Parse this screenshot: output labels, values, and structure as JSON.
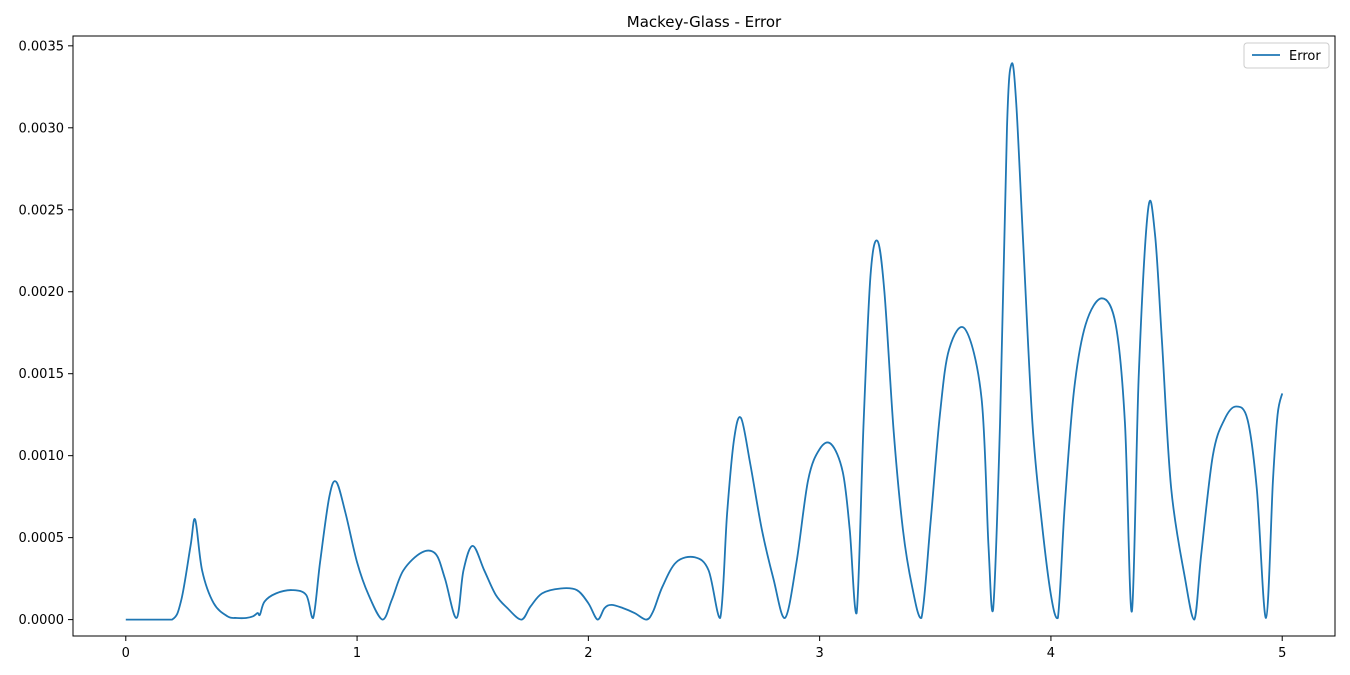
{
  "chart_data": {
    "type": "line",
    "title": "Mackey-Glass - Error",
    "xlabel": "",
    "ylabel": "",
    "xlim": [
      0,
      5
    ],
    "ylim": [
      0,
      0.0035
    ],
    "x_ticks": [
      0,
      1,
      2,
      3,
      4,
      5
    ],
    "x_tick_labels": [
      "0",
      "1",
      "2",
      "3",
      "4",
      "5"
    ],
    "y_ticks": [
      0,
      0.0005,
      0.001,
      0.0015,
      0.002,
      0.0025,
      0.003,
      0.0035
    ],
    "y_tick_labels": [
      "0.0000",
      "0.0005",
      "0.0010",
      "0.0015",
      "0.0020",
      "0.0025",
      "0.0030",
      "0.0035"
    ],
    "grid": false,
    "legend_position": "top-right",
    "series": [
      {
        "name": "Error",
        "color": "#1f77b4",
        "x": [
          0,
          0.1,
          0.2,
          0.24,
          0.28,
          0.3,
          0.33,
          0.38,
          0.44,
          0.48,
          0.52,
          0.55,
          0.57,
          0.58,
          0.6,
          0.65,
          0.72,
          0.78,
          0.81,
          0.84,
          0.88,
          0.91,
          0.95,
          1.0,
          1.05,
          1.11,
          1.15,
          1.2,
          1.28,
          1.34,
          1.38,
          1.43,
          1.46,
          1.5,
          1.55,
          1.6,
          1.65,
          1.71,
          1.75,
          1.8,
          1.88,
          1.95,
          2.0,
          2.04,
          2.07,
          2.1,
          2.15,
          2.2,
          2.25,
          2.28,
          2.32,
          2.38,
          2.46,
          2.52,
          2.57,
          2.6,
          2.63,
          2.66,
          2.7,
          2.75,
          2.8,
          2.85,
          2.9,
          2.95,
          3.0,
          3.05,
          3.1,
          3.13,
          3.16,
          3.19,
          3.22,
          3.25,
          3.28,
          3.32,
          3.36,
          3.4,
          3.44,
          3.48,
          3.52,
          3.56,
          3.63,
          3.7,
          3.73,
          3.75,
          3.78,
          3.81,
          3.83,
          3.85,
          3.88,
          3.92,
          3.96,
          4.0,
          4.03,
          4.06,
          4.1,
          4.15,
          4.22,
          4.28,
          4.32,
          4.35,
          4.38,
          4.42,
          4.45,
          4.48,
          4.52,
          4.58,
          4.62,
          4.65,
          4.7,
          4.75,
          4.8,
          4.85,
          4.89,
          4.93,
          4.96,
          4.98,
          5.0
        ],
        "values": [
          0,
          0,
          0,
          0.00012,
          0.00045,
          0.00061,
          0.0003,
          0.0001,
          2e-05,
          1e-05,
          1e-05,
          2e-05,
          4e-05,
          3e-05,
          0.00011,
          0.00016,
          0.00018,
          0.00015,
          1e-05,
          0.00035,
          0.00075,
          0.00084,
          0.00065,
          0.00035,
          0.00015,
          0.0,
          0.00012,
          0.0003,
          0.00041,
          0.0004,
          0.00025,
          1e-05,
          0.0003,
          0.00045,
          0.0003,
          0.00015,
          7e-05,
          0.0,
          8e-05,
          0.00016,
          0.00019,
          0.00018,
          0.0001,
          0.0,
          7e-05,
          9e-05,
          7e-05,
          4e-05,
          0.0,
          5e-05,
          0.0002,
          0.00035,
          0.00038,
          0.0003,
          1e-05,
          0.00065,
          0.0011,
          0.00123,
          0.00095,
          0.00055,
          0.00025,
          1e-05,
          0.00035,
          0.00085,
          0.00104,
          0.00107,
          0.0009,
          0.00055,
          4e-05,
          0.0012,
          0.0021,
          0.00231,
          0.002,
          0.00115,
          0.00055,
          0.0002,
          1e-05,
          0.0006,
          0.00125,
          0.00165,
          0.00177,
          0.00135,
          0.00045,
          6e-05,
          0.0012,
          0.003,
          0.00339,
          0.00315,
          0.0023,
          0.0012,
          0.0006,
          0.00015,
          1e-05,
          0.0007,
          0.0014,
          0.0018,
          0.00196,
          0.0018,
          0.0012,
          5e-05,
          0.0015,
          0.0025,
          0.00235,
          0.0017,
          0.0008,
          0.00025,
          0.0,
          0.0004,
          0.001,
          0.00122,
          0.0013,
          0.00122,
          0.0008,
          1e-05,
          0.00085,
          0.00125,
          0.00138
        ]
      }
    ]
  }
}
